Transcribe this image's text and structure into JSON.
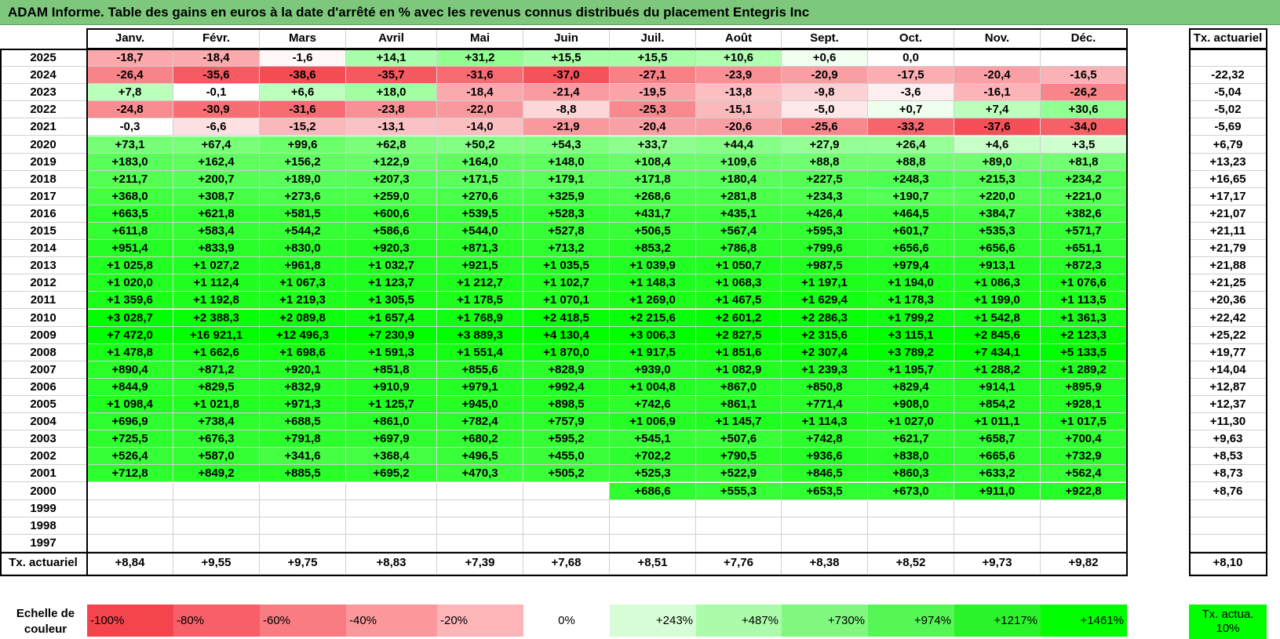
{
  "title": "ADAM Informe. Table des gains en euros à la date d'arrêté en % avec les revenus connus distribués du placement Entegris Inc",
  "colors": {
    "title_bg": "#7ec87e",
    "legend": [
      "#f4454d",
      "#f76068",
      "#f97c82",
      "#fb989c",
      "#fdb5b8",
      "#ffffff",
      "#d6fdd6",
      "#abfbab",
      "#80f880",
      "#55f655",
      "#2bf32b"
    ],
    "neg_max": "#f4454d",
    "pos_max": "#00ff00",
    "actua_color": "#00ff00"
  },
  "chart_data": {
    "type": "heatmap",
    "title": "ADAM Informe. Table des gains en euros à la date d'arrêté en % avec les revenus connus distribués du placement Entegris Inc",
    "columns": [
      "Janv.",
      "Févr.",
      "Mars",
      "Avril",
      "Mai",
      "Juin",
      "Juil.",
      "Août",
      "Sept.",
      "Oct.",
      "Nov.",
      "Déc."
    ],
    "side_header": "Tx. actuariel",
    "rows": [
      {
        "year": "2025",
        "values": [
          "-18,7",
          "-18,4",
          "-1,6",
          "+14,1",
          "+31,2",
          "+15,5",
          "+15,5",
          "+10,6",
          "+0,6",
          "0,0",
          "",
          ""
        ],
        "rate": ""
      },
      {
        "year": "2024",
        "values": [
          "-26,4",
          "-35,6",
          "-38,6",
          "-35,7",
          "-31,6",
          "-37,0",
          "-27,1",
          "-23,9",
          "-20,9",
          "-17,5",
          "-20,4",
          "-16,5"
        ],
        "rate": "-22,32"
      },
      {
        "year": "2023",
        "values": [
          "+7,8",
          "-0,1",
          "+6,6",
          "+18,0",
          "-18,4",
          "-21,4",
          "-19,5",
          "-13,8",
          "-9,8",
          "-3,6",
          "-16,1",
          "-26,2"
        ],
        "rate": "-5,04"
      },
      {
        "year": "2022",
        "values": [
          "-24,8",
          "-30,9",
          "-31,6",
          "-23,8",
          "-22,0",
          "-8,8",
          "-25,3",
          "-15,1",
          "-5,0",
          "+0,7",
          "+7,4",
          "+30,6"
        ],
        "rate": "-5,02"
      },
      {
        "year": "2021",
        "values": [
          "-0,3",
          "-6,6",
          "-15,2",
          "-13,1",
          "-14,0",
          "-21,9",
          "-20,4",
          "-20,6",
          "-25,6",
          "-33,2",
          "-37,6",
          "-34,0"
        ],
        "rate": "-5,69"
      },
      {
        "year": "2020",
        "values": [
          "+73,1",
          "+67,4",
          "+99,6",
          "+62,8",
          "+50,2",
          "+54,3",
          "+33,7",
          "+44,4",
          "+27,9",
          "+26,4",
          "+4,6",
          "+3,5"
        ],
        "rate": "+6,79"
      },
      {
        "year": "2019",
        "values": [
          "+183,0",
          "+162,4",
          "+156,2",
          "+122,9",
          "+164,0",
          "+148,0",
          "+108,4",
          "+109,6",
          "+88,8",
          "+88,8",
          "+89,0",
          "+81,8"
        ],
        "rate": "+13,23"
      },
      {
        "year": "2018",
        "values": [
          "+211,7",
          "+200,7",
          "+189,0",
          "+207,3",
          "+171,5",
          "+179,1",
          "+171,8",
          "+180,4",
          "+227,5",
          "+248,3",
          "+215,3",
          "+234,2"
        ],
        "rate": "+16,65"
      },
      {
        "year": "2017",
        "values": [
          "+368,0",
          "+308,7",
          "+273,6",
          "+259,0",
          "+270,6",
          "+325,9",
          "+268,6",
          "+281,8",
          "+234,3",
          "+190,7",
          "+220,0",
          "+221,0"
        ],
        "rate": "+17,17"
      },
      {
        "year": "2016",
        "values": [
          "+663,5",
          "+621,8",
          "+581,5",
          "+600,6",
          "+539,5",
          "+528,3",
          "+431,7",
          "+435,1",
          "+426,4",
          "+464,5",
          "+384,7",
          "+382,6"
        ],
        "rate": "+21,07"
      },
      {
        "year": "2015",
        "values": [
          "+611,8",
          "+583,4",
          "+544,2",
          "+586,6",
          "+544,0",
          "+527,8",
          "+506,5",
          "+567,4",
          "+595,3",
          "+601,7",
          "+535,3",
          "+571,7"
        ],
        "rate": "+21,11"
      },
      {
        "year": "2014",
        "values": [
          "+951,4",
          "+833,9",
          "+830,0",
          "+920,3",
          "+871,3",
          "+713,2",
          "+853,2",
          "+786,8",
          "+799,6",
          "+656,6",
          "+656,6",
          "+651,1"
        ],
        "rate": "+21,79"
      },
      {
        "year": "2013",
        "values": [
          "+1 025,8",
          "+1 027,2",
          "+961,8",
          "+1 032,7",
          "+921,5",
          "+1 035,5",
          "+1 039,9",
          "+1 050,7",
          "+987,5",
          "+979,4",
          "+913,1",
          "+872,3"
        ],
        "rate": "+21,88"
      },
      {
        "year": "2012",
        "values": [
          "+1 020,0",
          "+1 112,4",
          "+1 067,3",
          "+1 123,7",
          "+1 212,7",
          "+1 102,7",
          "+1 148,3",
          "+1 068,3",
          "+1 197,1",
          "+1 194,0",
          "+1 086,3",
          "+1 076,6"
        ],
        "rate": "+21,25"
      },
      {
        "year": "2011",
        "values": [
          "+1 359,6",
          "+1 192,8",
          "+1 219,3",
          "+1 305,5",
          "+1 178,5",
          "+1 070,1",
          "+1 269,0",
          "+1 467,5",
          "+1 629,4",
          "+1 178,3",
          "+1 199,0",
          "+1 113,5"
        ],
        "rate": "+20,36"
      },
      {
        "year": "2010",
        "values": [
          "+3 028,7",
          "+2 388,3",
          "+2 089,8",
          "+1 657,4",
          "+1 768,9",
          "+2 418,5",
          "+2 215,6",
          "+2 601,2",
          "+2 286,3",
          "+1 799,2",
          "+1 542,8",
          "+1 361,3"
        ],
        "rate": "+22,42"
      },
      {
        "year": "2009",
        "values": [
          "+7 472,0",
          "+16 921,1",
          "+12 496,3",
          "+7 230,9",
          "+3 889,3",
          "+4 130,4",
          "+3 006,3",
          "+2 827,5",
          "+2 315,6",
          "+3 115,1",
          "+2 845,6",
          "+2 123,3"
        ],
        "rate": "+25,22"
      },
      {
        "year": "2008",
        "values": [
          "+1 478,8",
          "+1 662,6",
          "+1 698,6",
          "+1 591,3",
          "+1 551,4",
          "+1 870,0",
          "+1 917,5",
          "+1 851,6",
          "+2 307,4",
          "+3 789,2",
          "+7 434,1",
          "+5 133,5"
        ],
        "rate": "+19,77"
      },
      {
        "year": "2007",
        "values": [
          "+890,4",
          "+871,2",
          "+920,1",
          "+851,8",
          "+855,6",
          "+828,9",
          "+939,0",
          "+1 082,9",
          "+1 239,3",
          "+1 195,7",
          "+1 288,2",
          "+1 289,2"
        ],
        "rate": "+14,04"
      },
      {
        "year": "2006",
        "values": [
          "+844,9",
          "+829,5",
          "+832,9",
          "+910,9",
          "+979,1",
          "+992,4",
          "+1 004,8",
          "+867,0",
          "+850,8",
          "+829,4",
          "+914,1",
          "+895,9"
        ],
        "rate": "+12,87"
      },
      {
        "year": "2005",
        "values": [
          "+1 098,4",
          "+1 021,8",
          "+971,3",
          "+1 125,7",
          "+945,0",
          "+898,5",
          "+742,6",
          "+861,1",
          "+771,4",
          "+908,0",
          "+854,2",
          "+928,1"
        ],
        "rate": "+12,37"
      },
      {
        "year": "2004",
        "values": [
          "+696,9",
          "+738,4",
          "+688,5",
          "+861,0",
          "+782,4",
          "+757,9",
          "+1 006,9",
          "+1 145,7",
          "+1 114,3",
          "+1 027,0",
          "+1 011,1",
          "+1 017,5"
        ],
        "rate": "+11,30"
      },
      {
        "year": "2003",
        "values": [
          "+725,5",
          "+676,3",
          "+791,8",
          "+697,9",
          "+680,2",
          "+595,2",
          "+545,1",
          "+507,6",
          "+742,8",
          "+621,7",
          "+658,7",
          "+700,4"
        ],
        "rate": "+9,63"
      },
      {
        "year": "2002",
        "values": [
          "+526,4",
          "+587,0",
          "+341,6",
          "+368,4",
          "+496,5",
          "+455,0",
          "+702,2",
          "+790,5",
          "+936,6",
          "+838,0",
          "+665,6",
          "+732,9"
        ],
        "rate": "+8,53"
      },
      {
        "year": "2001",
        "values": [
          "+712,8",
          "+849,2",
          "+885,5",
          "+695,2",
          "+470,3",
          "+505,2",
          "+525,3",
          "+522,9",
          "+846,5",
          "+860,3",
          "+633,2",
          "+562,4"
        ],
        "rate": "+8,73"
      },
      {
        "year": "2000",
        "values": [
          "",
          "",
          "",
          "",
          "",
          "",
          "+686,6",
          "+555,3",
          "+653,5",
          "+673,0",
          "+911,0",
          "+922,8"
        ],
        "rate": "+8,76"
      },
      {
        "year": "1999",
        "values": [
          "",
          "",
          "",
          "",
          "",
          "",
          "",
          "",
          "",
          "",
          "",
          ""
        ],
        "rate": ""
      },
      {
        "year": "1998",
        "values": [
          "",
          "",
          "",
          "",
          "",
          "",
          "",
          "",
          "",
          "",
          "",
          ""
        ],
        "rate": ""
      },
      {
        "year": "1997",
        "values": [
          "",
          "",
          "",
          "",
          "",
          "",
          "",
          "",
          "",
          "",
          "",
          ""
        ],
        "rate": ""
      }
    ],
    "footer": {
      "label": "Tx. actuariel",
      "values": [
        "+8,84",
        "+9,55",
        "+9,75",
        "+8,83",
        "+7,39",
        "+7,68",
        "+8,51",
        "+7,76",
        "+8,38",
        "+8,52",
        "+9,73",
        "+9,82"
      ],
      "rate": "+8,10"
    },
    "legend": {
      "label": "Echelle de couleur",
      "items": [
        "-100%",
        "-80%",
        "-60%",
        "-40%",
        "-20%",
        "0%",
        "+243%",
        "+487%",
        "+730%",
        "+974%",
        "+1217%",
        "+1461%"
      ],
      "actua": "Tx. actua. 10%"
    }
  }
}
